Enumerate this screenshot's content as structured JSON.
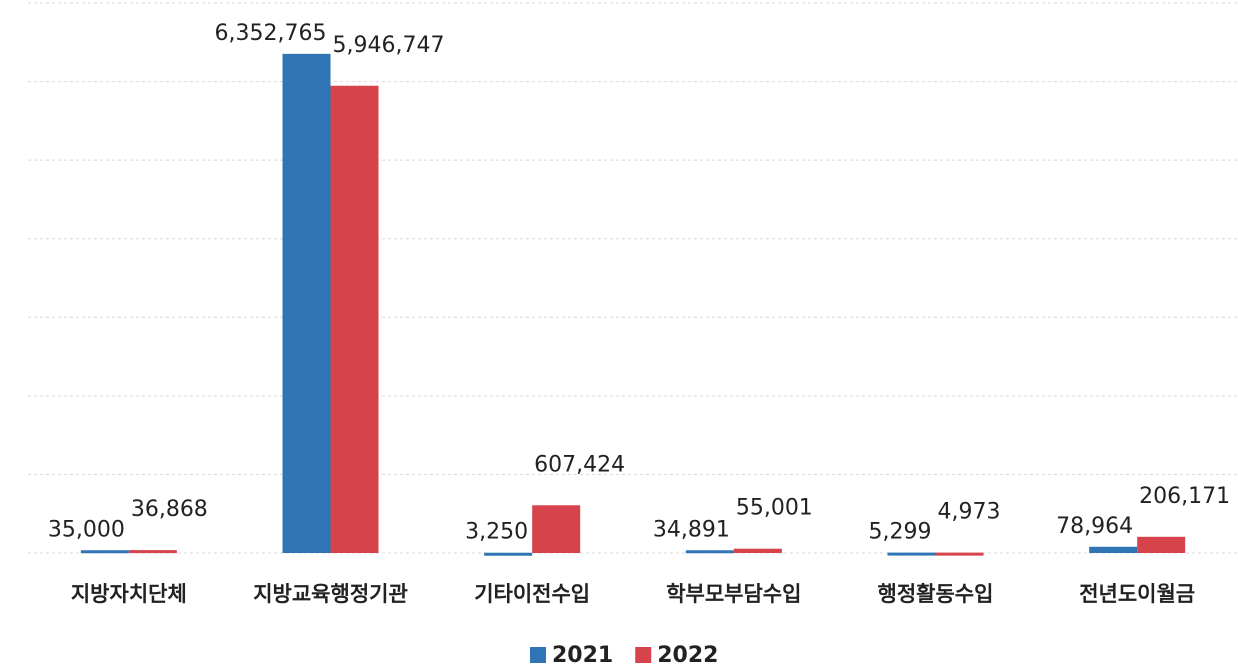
{
  "chart_data": {
    "type": "bar",
    "categories": [
      "지방자치단체",
      "지방교육행정기관",
      "기타이전수입",
      "학부모부담수입",
      "행정활동수입",
      "전년도이월금"
    ],
    "series": [
      {
        "name": "2021",
        "color": "#2f74b5",
        "values": [
          35000,
          6352765,
          3250,
          34891,
          5299,
          78964
        ],
        "value_labels": [
          "35,000",
          "6,352,765",
          "3,250",
          "34,891",
          "5,299",
          "78,964"
        ]
      },
      {
        "name": "2022",
        "color": "#d6434b",
        "values": [
          36868,
          5946747,
          607424,
          55001,
          4973,
          206171
        ],
        "value_labels": [
          "36,868",
          "5,946,747",
          "607,424",
          "55,001",
          "4,973",
          "206,171"
        ]
      }
    ],
    "ylim": [
      0,
      7000000
    ],
    "yticks": [
      0,
      1000000,
      2000000,
      3000000,
      4000000,
      5000000,
      6000000,
      7000000
    ],
    "grid": true,
    "legend": "bottom"
  }
}
